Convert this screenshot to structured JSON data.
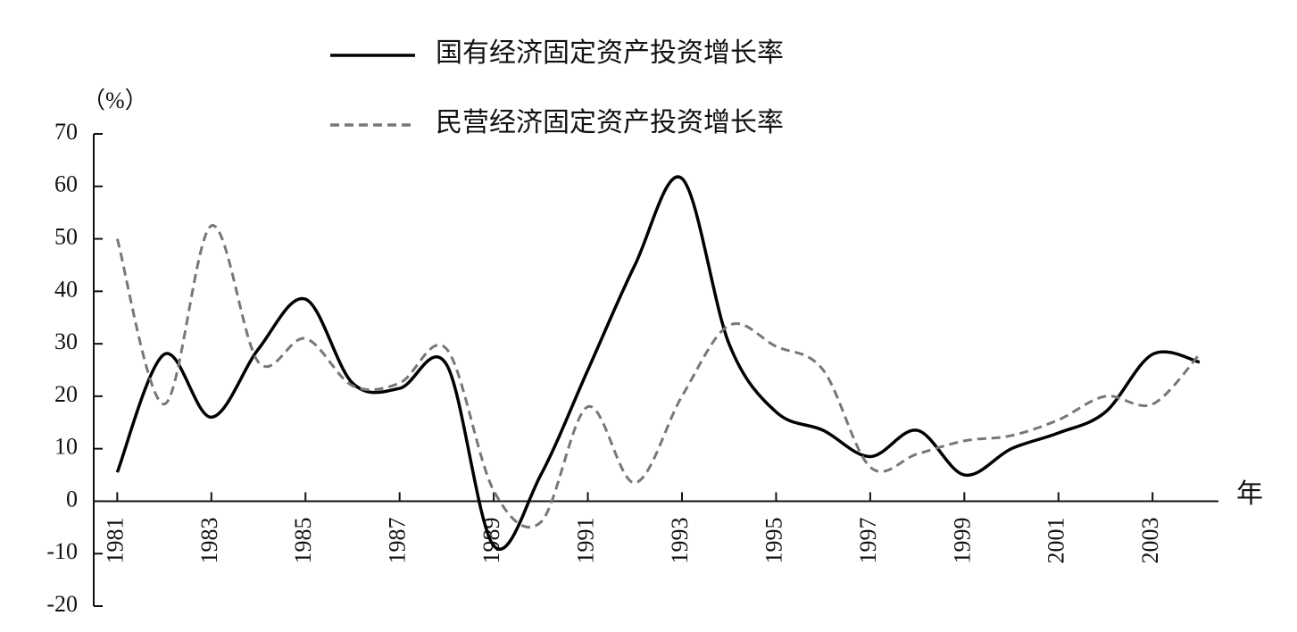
{
  "chart_data": {
    "type": "line",
    "y_label": "（%）",
    "x_label": "年",
    "x": [
      1981,
      1982,
      1983,
      1984,
      1985,
      1986,
      1987,
      1988,
      1989,
      1990,
      1991,
      1992,
      1993,
      1994,
      1995,
      1996,
      1997,
      1998,
      1999,
      2000,
      2001,
      2002,
      2003,
      2004
    ],
    "series": [
      {
        "name": "国有经济固定资产投资增长率",
        "color": "#000000",
        "dash": "solid",
        "values": [
          5.5,
          28,
          16,
          29,
          38.5,
          22.5,
          21.5,
          26,
          -8.5,
          5,
          25,
          45,
          61.5,
          30,
          17,
          13.5,
          8.5,
          13.5,
          5,
          10,
          13,
          17,
          28,
          26.5
        ]
      },
      {
        "name": "民营经济固定资产投资增长率",
        "color": "#777777",
        "dash": "dashed",
        "values": [
          50,
          18.5,
          52.5,
          26.5,
          31,
          22,
          22.5,
          29,
          2,
          -4,
          18,
          3.5,
          20,
          33.5,
          29.5,
          25,
          6.5,
          9,
          11.5,
          12.5,
          15.5,
          20,
          18.5,
          28
        ]
      }
    ],
    "xlim": [
      1980.5,
      2004.4
    ],
    "xticks": [
      1981,
      1983,
      1985,
      1987,
      1989,
      1991,
      1993,
      1995,
      1997,
      1999,
      2001,
      2003
    ],
    "ylim": [
      -20,
      70
    ],
    "yticks": [
      -20,
      -10,
      0,
      10,
      20,
      30,
      40,
      50,
      60,
      70
    ],
    "grid": false
  }
}
